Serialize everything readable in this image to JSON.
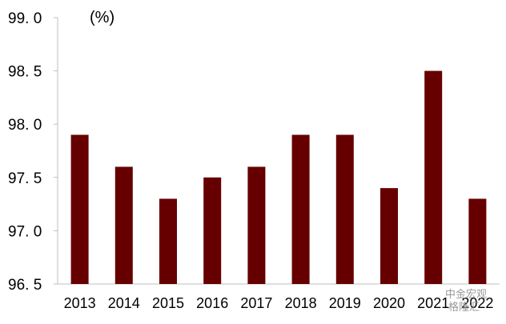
{
  "chart_data": {
    "type": "bar",
    "unit_label": "(%)",
    "categories": [
      "2013",
      "2014",
      "2015",
      "2016",
      "2017",
      "2018",
      "2019",
      "2020",
      "2021",
      "2022"
    ],
    "values": [
      97.9,
      97.6,
      97.3,
      97.5,
      97.6,
      97.9,
      97.9,
      97.4,
      98.5,
      97.3
    ],
    "ylim": [
      96.5,
      99.0
    ],
    "yticks": [
      "96. 5",
      "97. 0",
      "97. 5",
      "98. 0",
      "98. 5",
      "99. 0"
    ],
    "ytick_values": [
      96.5,
      97.0,
      97.5,
      98.0,
      98.5,
      99.0
    ],
    "grid": false,
    "bar_color": "#660000",
    "axis_color": "#bfbfbf"
  },
  "watermark": {
    "line1": "中金宏观",
    "line2": "格隆汇"
  }
}
